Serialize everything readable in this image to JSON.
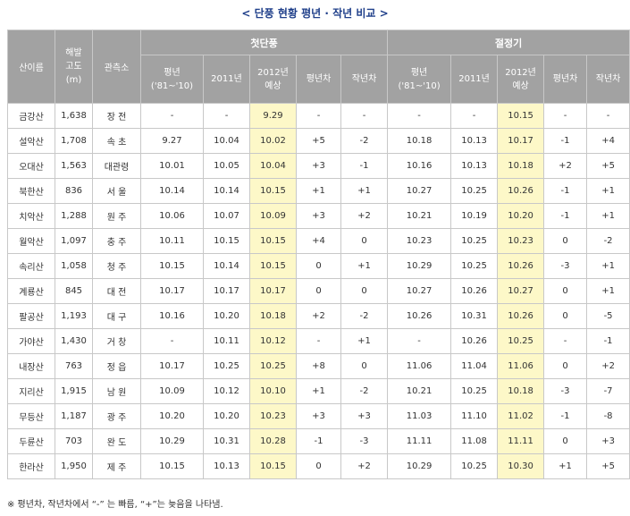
{
  "title": "단풍 현황 평년 · 작년 비교",
  "title_left_mark": "<",
  "title_right_mark": ">",
  "headers": {
    "mountain": "산이름",
    "altitude_l1": "해발",
    "altitude_l2": "고도",
    "altitude_l3": "(m)",
    "station": "관측소",
    "group_first": "첫단풍",
    "group_peak": "절정기",
    "normal_l1": "평년",
    "normal_l2": "('81~'10)",
    "y2011": "2011년",
    "y2012_l1": "2012년",
    "y2012_l2": "예상",
    "diff_normal": "평년차",
    "diff_last": "작년차"
  },
  "rows": [
    {
      "mountain": "금강산",
      "alt": "1,638",
      "station": "장 전",
      "f_normal": "-",
      "f_2011": "-",
      "f_2012": "9.29",
      "f_dn": "-",
      "f_dl": "-",
      "p_normal": "-",
      "p_2011": "-",
      "p_2012": "10.15",
      "p_dn": "-",
      "p_dl": "-"
    },
    {
      "mountain": "설악산",
      "alt": "1,708",
      "station": "속 초",
      "f_normal": "9.27",
      "f_2011": "10.04",
      "f_2012": "10.02",
      "f_dn": "+5",
      "f_dl": "-2",
      "p_normal": "10.18",
      "p_2011": "10.13",
      "p_2012": "10.17",
      "p_dn": "-1",
      "p_dl": "+4"
    },
    {
      "mountain": "오대산",
      "alt": "1,563",
      "station": "대관령",
      "f_normal": "10.01",
      "f_2011": "10.05",
      "f_2012": "10.04",
      "f_dn": "+3",
      "f_dl": "-1",
      "p_normal": "10.16",
      "p_2011": "10.13",
      "p_2012": "10.18",
      "p_dn": "+2",
      "p_dl": "+5"
    },
    {
      "mountain": "북한산",
      "alt": "836",
      "station": "서 울",
      "f_normal": "10.14",
      "f_2011": "10.14",
      "f_2012": "10.15",
      "f_dn": "+1",
      "f_dl": "+1",
      "p_normal": "10.27",
      "p_2011": "10.25",
      "p_2012": "10.26",
      "p_dn": "-1",
      "p_dl": "+1"
    },
    {
      "mountain": "치악산",
      "alt": "1,288",
      "station": "원 주",
      "f_normal": "10.06",
      "f_2011": "10.07",
      "f_2012": "10.09",
      "f_dn": "+3",
      "f_dl": "+2",
      "p_normal": "10.21",
      "p_2011": "10.19",
      "p_2012": "10.20",
      "p_dn": "-1",
      "p_dl": "+1"
    },
    {
      "mountain": "월악산",
      "alt": "1,097",
      "station": "충 주",
      "f_normal": "10.11",
      "f_2011": "10.15",
      "f_2012": "10.15",
      "f_dn": "+4",
      "f_dl": "0",
      "p_normal": "10.23",
      "p_2011": "10.25",
      "p_2012": "10.23",
      "p_dn": "0",
      "p_dl": "-2"
    },
    {
      "mountain": "속리산",
      "alt": "1,058",
      "station": "청 주",
      "f_normal": "10.15",
      "f_2011": "10.14",
      "f_2012": "10.15",
      "f_dn": "0",
      "f_dl": "+1",
      "p_normal": "10.29",
      "p_2011": "10.25",
      "p_2012": "10.26",
      "p_dn": "-3",
      "p_dl": "+1"
    },
    {
      "mountain": "계룡산",
      "alt": "845",
      "station": "대 전",
      "f_normal": "10.17",
      "f_2011": "10.17",
      "f_2012": "10.17",
      "f_dn": "0",
      "f_dl": "0",
      "p_normal": "10.27",
      "p_2011": "10.26",
      "p_2012": "10.27",
      "p_dn": "0",
      "p_dl": "+1"
    },
    {
      "mountain": "팔공산",
      "alt": "1,193",
      "station": "대 구",
      "f_normal": "10.16",
      "f_2011": "10.20",
      "f_2012": "10.18",
      "f_dn": "+2",
      "f_dl": "-2",
      "p_normal": "10.26",
      "p_2011": "10.31",
      "p_2012": "10.26",
      "p_dn": "0",
      "p_dl": "-5"
    },
    {
      "mountain": "가야산",
      "alt": "1,430",
      "station": "거 창",
      "f_normal": "-",
      "f_2011": "10.11",
      "f_2012": "10.12",
      "f_dn": "-",
      "f_dl": "+1",
      "p_normal": "-",
      "p_2011": "10.26",
      "p_2012": "10.25",
      "p_dn": "-",
      "p_dl": "-1"
    },
    {
      "mountain": "내장산",
      "alt": "763",
      "station": "정 읍",
      "f_normal": "10.17",
      "f_2011": "10.25",
      "f_2012": "10.25",
      "f_dn": "+8",
      "f_dl": "0",
      "p_normal": "11.06",
      "p_2011": "11.04",
      "p_2012": "11.06",
      "p_dn": "0",
      "p_dl": "+2"
    },
    {
      "mountain": "지리산",
      "alt": "1,915",
      "station": "남 원",
      "f_normal": "10.09",
      "f_2011": "10.12",
      "f_2012": "10.10",
      "f_dn": "+1",
      "f_dl": "-2",
      "p_normal": "10.21",
      "p_2011": "10.25",
      "p_2012": "10.18",
      "p_dn": "-3",
      "p_dl": "-7"
    },
    {
      "mountain": "무등산",
      "alt": "1,187",
      "station": "광 주",
      "f_normal": "10.20",
      "f_2011": "10.20",
      "f_2012": "10.23",
      "f_dn": "+3",
      "f_dl": "+3",
      "p_normal": "11.03",
      "p_2011": "11.10",
      "p_2012": "11.02",
      "p_dn": "-1",
      "p_dl": "-8"
    },
    {
      "mountain": "두륜산",
      "alt": "703",
      "station": "완 도",
      "f_normal": "10.29",
      "f_2011": "10.31",
      "f_2012": "10.28",
      "f_dn": "-1",
      "f_dl": "-3",
      "p_normal": "11.11",
      "p_2011": "11.08",
      "p_2012": "11.11",
      "p_dn": "0",
      "p_dl": "+3"
    },
    {
      "mountain": "한라산",
      "alt": "1,950",
      "station": "제 주",
      "f_normal": "10.15",
      "f_2011": "10.13",
      "f_2012": "10.15",
      "f_dn": "0",
      "f_dl": "+2",
      "p_normal": "10.29",
      "p_2011": "10.25",
      "p_2012": "10.30",
      "p_dn": "+1",
      "p_dl": "+5"
    }
  ],
  "footnote": "※ 평년차, 작년차에서 “-” 는 빠름, “+”는 늦음을 나타냄.",
  "colors": {
    "title": "#1f3f8a",
    "header_bg": "#a2a2a2",
    "highlight": "#fdf8c8",
    "border": "#c8c8c8"
  }
}
